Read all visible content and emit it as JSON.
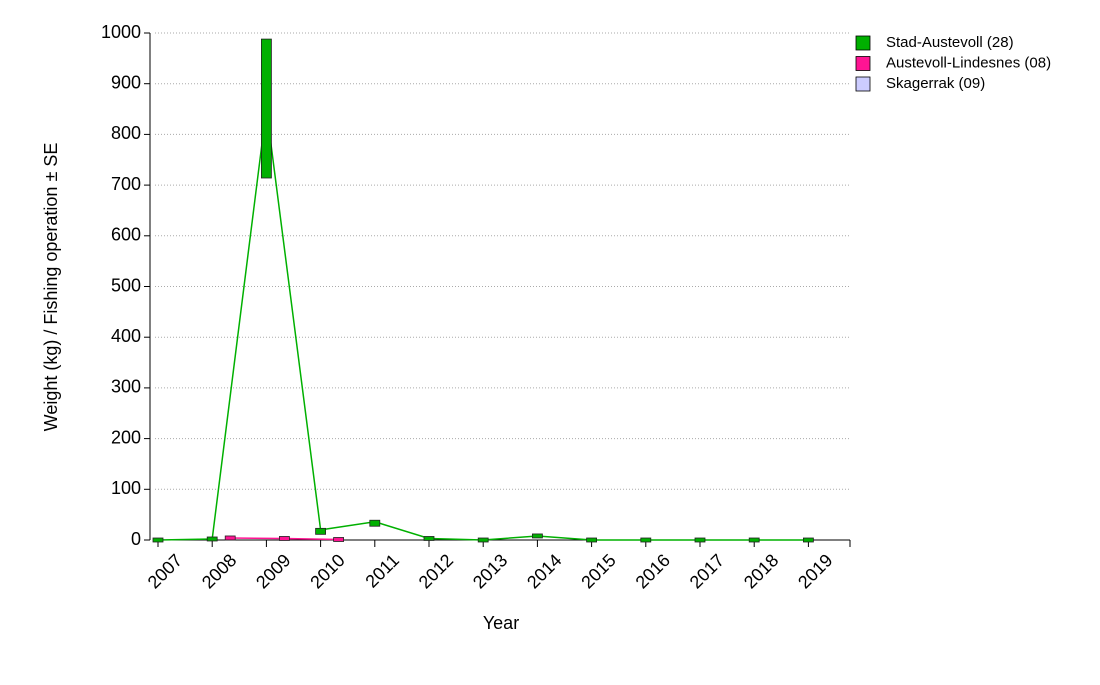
{
  "chart_data": {
    "type": "line",
    "x_label": "Year",
    "y_label": "Weight (kg) / Fishing operation ± SE",
    "categories": [
      "2007",
      "2008",
      "2009",
      "2010",
      "2011",
      "2012",
      "2013",
      "2014",
      "2015",
      "2016",
      "2017",
      "2018",
      "2019"
    ],
    "series": [
      {
        "name": "Stad-Austevoll (28)",
        "color": "#00b000",
        "values": [
          0,
          2,
          851,
          20,
          36,
          3,
          0,
          8,
          0,
          0,
          0,
          0,
          0
        ],
        "errors": [
          null,
          null,
          137,
          3,
          3,
          null,
          null,
          null,
          null,
          null,
          null,
          null,
          null
        ]
      },
      {
        "name": "Austevoll-Lindesnes (08)",
        "color": "#ff1493",
        "values": [
          null,
          4,
          3,
          1,
          null,
          null,
          null,
          null,
          null,
          null,
          null,
          null,
          null
        ],
        "errors": [
          null,
          null,
          null,
          null,
          null,
          null,
          null,
          null,
          null,
          null,
          null,
          null,
          null
        ]
      },
      {
        "name": "Skagerrak (09)",
        "color": "#ccccff",
        "values": [
          null,
          null,
          null,
          null,
          null,
          null,
          null,
          null,
          null,
          null,
          null,
          null,
          null
        ],
        "errors": [
          null,
          null,
          null,
          null,
          null,
          null,
          null,
          null,
          null,
          null,
          null,
          null,
          null
        ]
      }
    ],
    "ylim": [
      0,
      1000
    ],
    "yticks": [
      0,
      100,
      200,
      300,
      400,
      500,
      600,
      700,
      800,
      900,
      1000
    ],
    "grid": true,
    "legend": "right"
  }
}
